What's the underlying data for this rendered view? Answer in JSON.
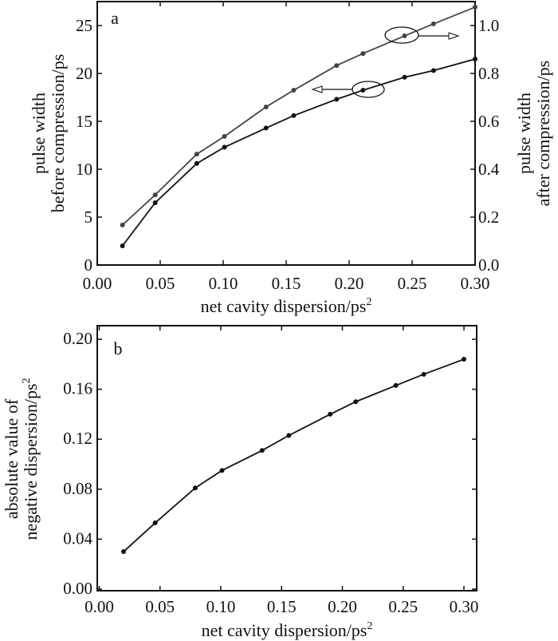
{
  "chart_data": [
    {
      "type": "line",
      "panel_label": "a",
      "xlabel": "net cavity dispersion/ps",
      "xlabel_sup": "2",
      "ylabel_left": [
        "pulse width",
        "before compression/ps"
      ],
      "ylabel_right": [
        "pulse width",
        "after compression/ps"
      ],
      "xlim": [
        0,
        0.3
      ],
      "ylim_left": [
        0,
        27.5
      ],
      "ylim_right": [
        0,
        1.1
      ],
      "xticks": [
        "0.00",
        "0.05",
        "0.10",
        "0.15",
        "0.20",
        "0.25",
        "0.30"
      ],
      "yticks_left": [
        "0",
        "5",
        "10",
        "15",
        "20",
        "25"
      ],
      "yticks_right": [
        "0.0",
        "0.2",
        "0.4",
        "0.6",
        "0.8",
        "1.0"
      ],
      "x": [
        0.02,
        0.046,
        0.079,
        0.101,
        0.134,
        0.156,
        0.19,
        0.211,
        0.244,
        0.267,
        0.3
      ],
      "series": [
        {
          "name": "pulse width before compression",
          "axis": "left",
          "color": "#111111",
          "values": [
            2.0,
            6.5,
            10.6,
            12.3,
            14.3,
            15.6,
            17.3,
            18.25,
            19.6,
            20.3,
            21.5
          ]
        },
        {
          "name": "pulse width after compression",
          "axis": "right",
          "color": "#444444",
          "values": [
            0.167,
            0.293,
            0.463,
            0.537,
            0.66,
            0.73,
            0.833,
            0.883,
            0.957,
            1.007,
            1.077
          ]
        }
      ],
      "annotations": [
        "ellipse with arrow pointing left (before compression)",
        "ellipse with arrow pointing right (after compression)"
      ]
    },
    {
      "type": "line",
      "panel_label": "b",
      "xlabel": "net cavity dispersion/ps",
      "xlabel_sup": "2",
      "ylabel": [
        "absolute value of",
        "negative dispersion/ps"
      ],
      "ylabel_sup": "2",
      "xlim": [
        0,
        0.31
      ],
      "ylim": [
        0,
        0.21
      ],
      "xticks": [
        "0.00",
        "0.05",
        "0.10",
        "0.15",
        "0.20",
        "0.25",
        "0.30"
      ],
      "yticks": [
        "0.00",
        "0.04",
        "0.08",
        "0.12",
        "0.16",
        "0.20"
      ],
      "x": [
        0.02,
        0.046,
        0.079,
        0.101,
        0.134,
        0.156,
        0.19,
        0.211,
        0.244,
        0.267,
        0.3
      ],
      "series": [
        {
          "name": "absolute value of negative dispersion",
          "color": "#111111",
          "values": [
            0.03,
            0.053,
            0.081,
            0.095,
            0.111,
            0.123,
            0.14,
            0.15,
            0.163,
            0.172,
            0.184
          ]
        }
      ]
    }
  ]
}
